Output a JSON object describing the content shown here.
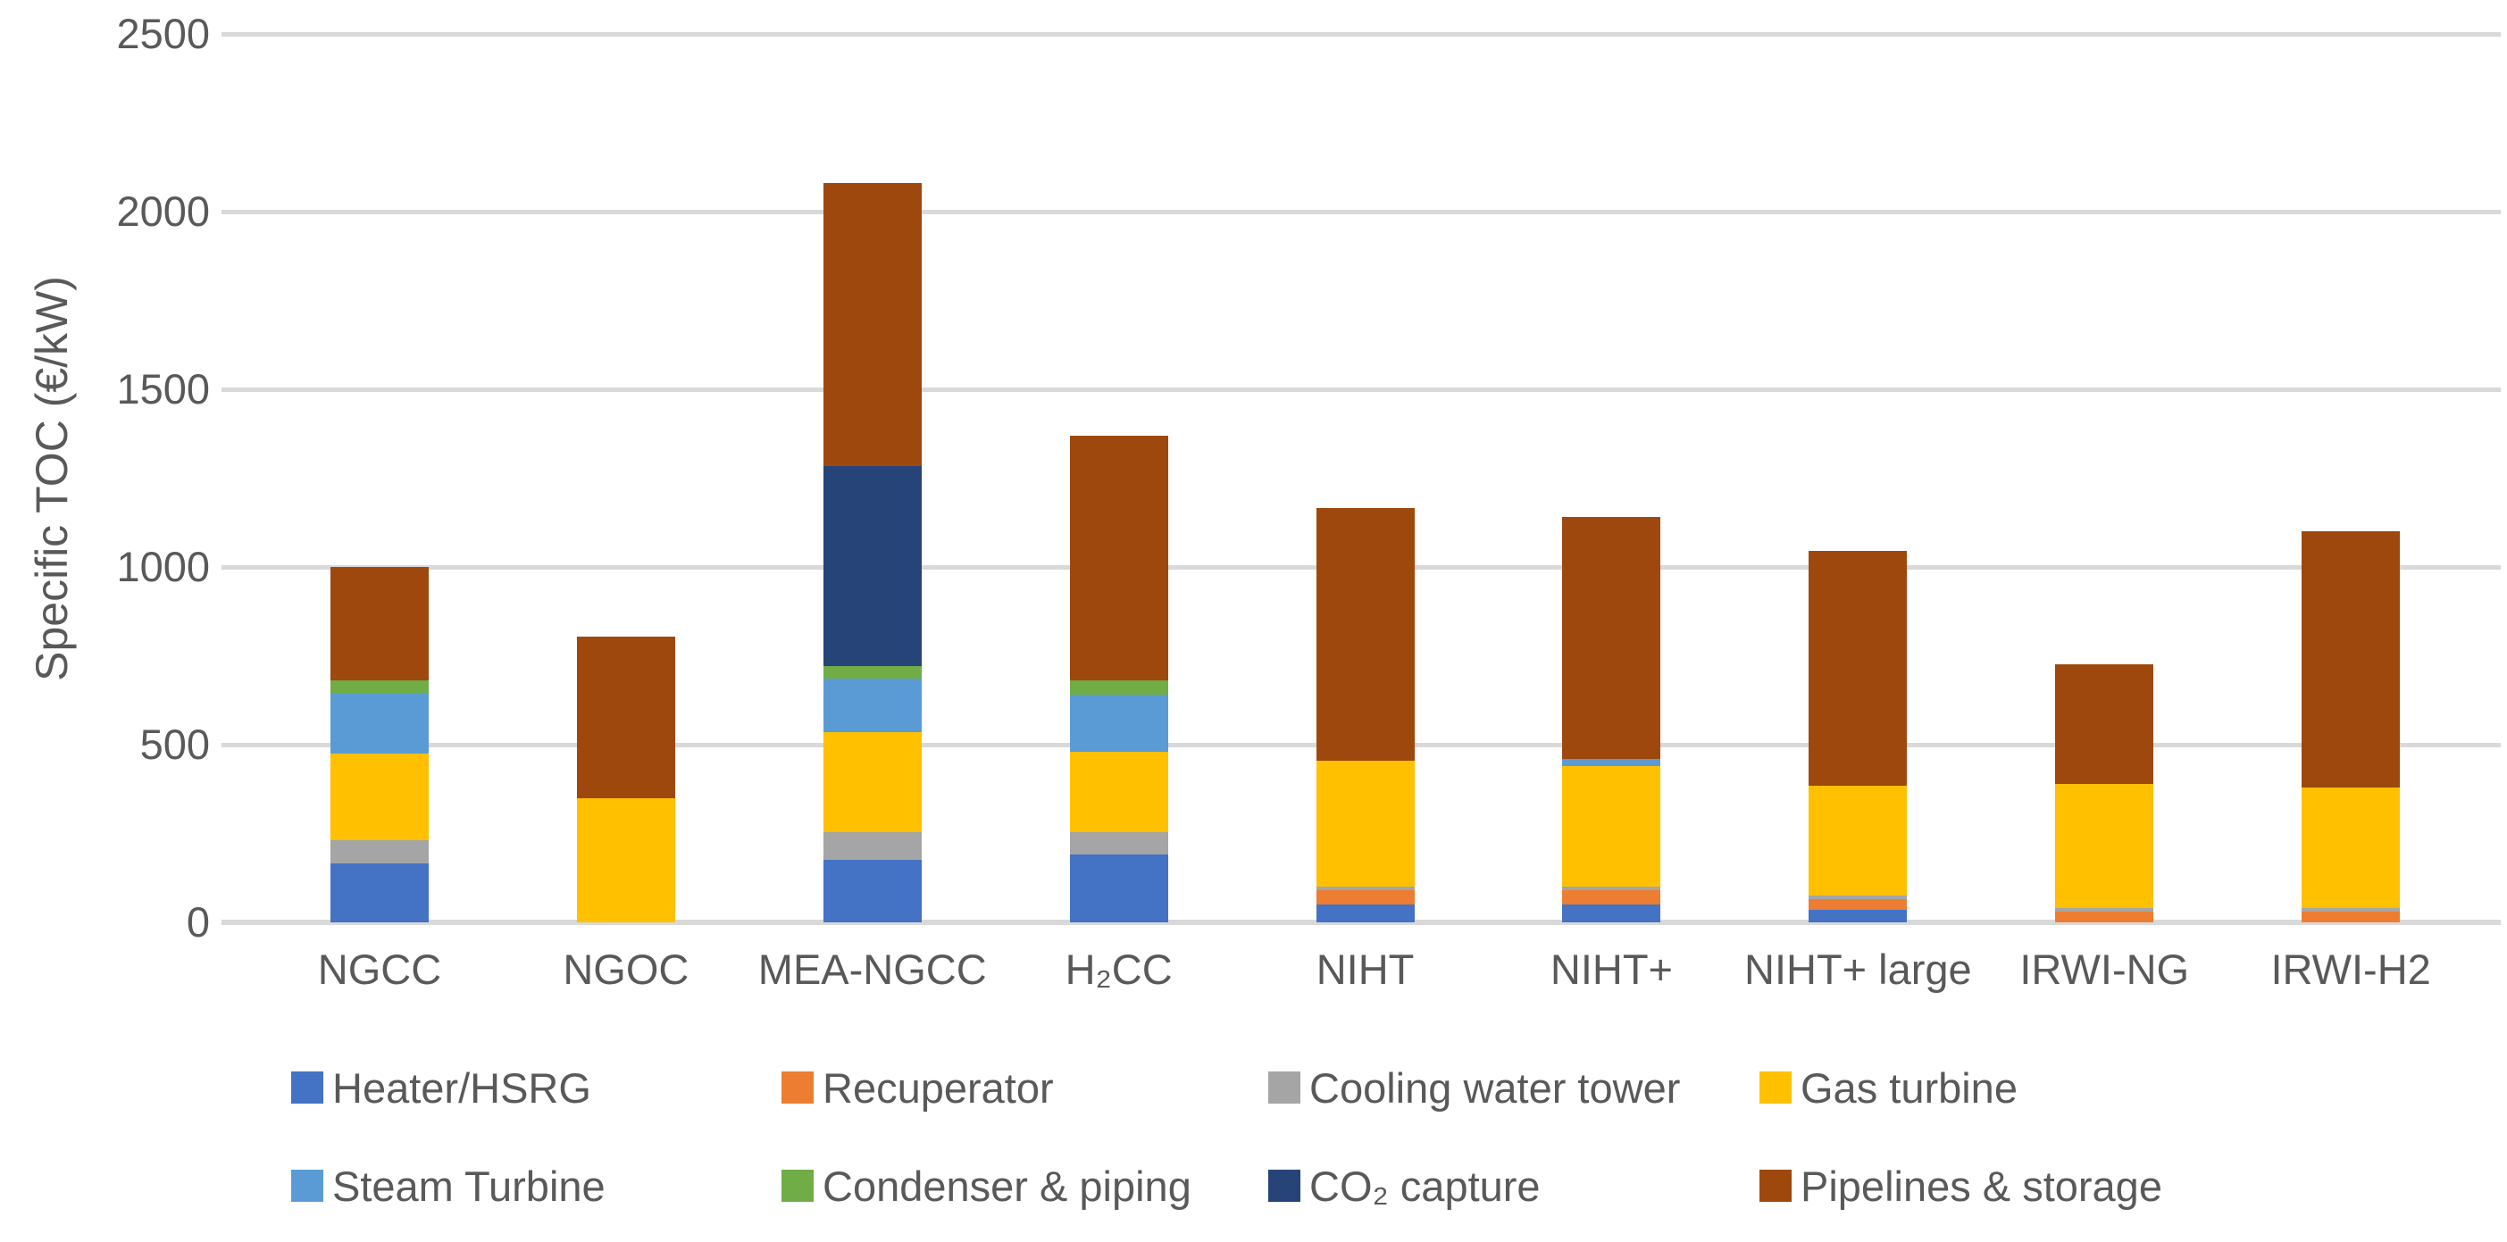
{
  "chart_data": {
    "type": "bar",
    "stacked": true,
    "title": "",
    "xlabel": "",
    "ylabel": "Specific TOC (€/kW)",
    "ylim": [
      0,
      2500
    ],
    "yticks": [
      "0",
      "500",
      "1000",
      "1500",
      "2000",
      "2500"
    ],
    "ytick_values": [
      0,
      500,
      1000,
      1500,
      2000,
      2500
    ],
    "grid": "horizontal",
    "gridline_color": "#d9d9d9",
    "axis_text_color": "#595959",
    "legend_position": "bottom",
    "legend_columns": 4,
    "categories": [
      "NGCC",
      "NGOC",
      "MEA-NGCC",
      "H₂CC",
      "NIHT",
      "NIHT+",
      "NIHT+ large",
      "IRWI-NG",
      "IRWI-H2"
    ],
    "series": [
      {
        "name": "Heater/HSRG",
        "color": "#4472c4",
        "values": [
          165,
          0,
          175,
          190,
          50,
          50,
          35,
          0,
          0
        ]
      },
      {
        "name": "Recuperator",
        "color": "#ed7d31",
        "values": [
          0,
          0,
          0,
          0,
          40,
          40,
          30,
          30,
          30
        ]
      },
      {
        "name": "Cooling water tower",
        "color": "#a5a5a5",
        "values": [
          65,
          0,
          80,
          65,
          10,
          10,
          10,
          10,
          10
        ]
      },
      {
        "name": "Gas turbine",
        "color": "#ffc000",
        "values": [
          245,
          350,
          280,
          225,
          355,
          340,
          310,
          350,
          340
        ]
      },
      {
        "name": "Steam Turbine",
        "color": "#5b9bd5",
        "values": [
          170,
          0,
          150,
          160,
          0,
          20,
          0,
          0,
          0
        ]
      },
      {
        "name": "Condenser & piping",
        "color": "#70ad47",
        "values": [
          35,
          0,
          35,
          40,
          0,
          0,
          0,
          0,
          0
        ]
      },
      {
        "name": "CO₂ capture",
        "color": "#264478",
        "values": [
          0,
          0,
          565,
          0,
          0,
          0,
          0,
          0,
          0
        ]
      },
      {
        "name": "Pipelines & storage",
        "color": "#9e480e",
        "values": [
          320,
          455,
          795,
          690,
          710,
          680,
          660,
          335,
          720
        ]
      }
    ],
    "legend_order": [
      "Heater/HSRG",
      "Recuperator",
      "Cooling water tower",
      "Gas turbine",
      "Steam Turbine",
      "Condenser & piping",
      "CO₂ capture",
      "Pipelines & storage"
    ]
  }
}
